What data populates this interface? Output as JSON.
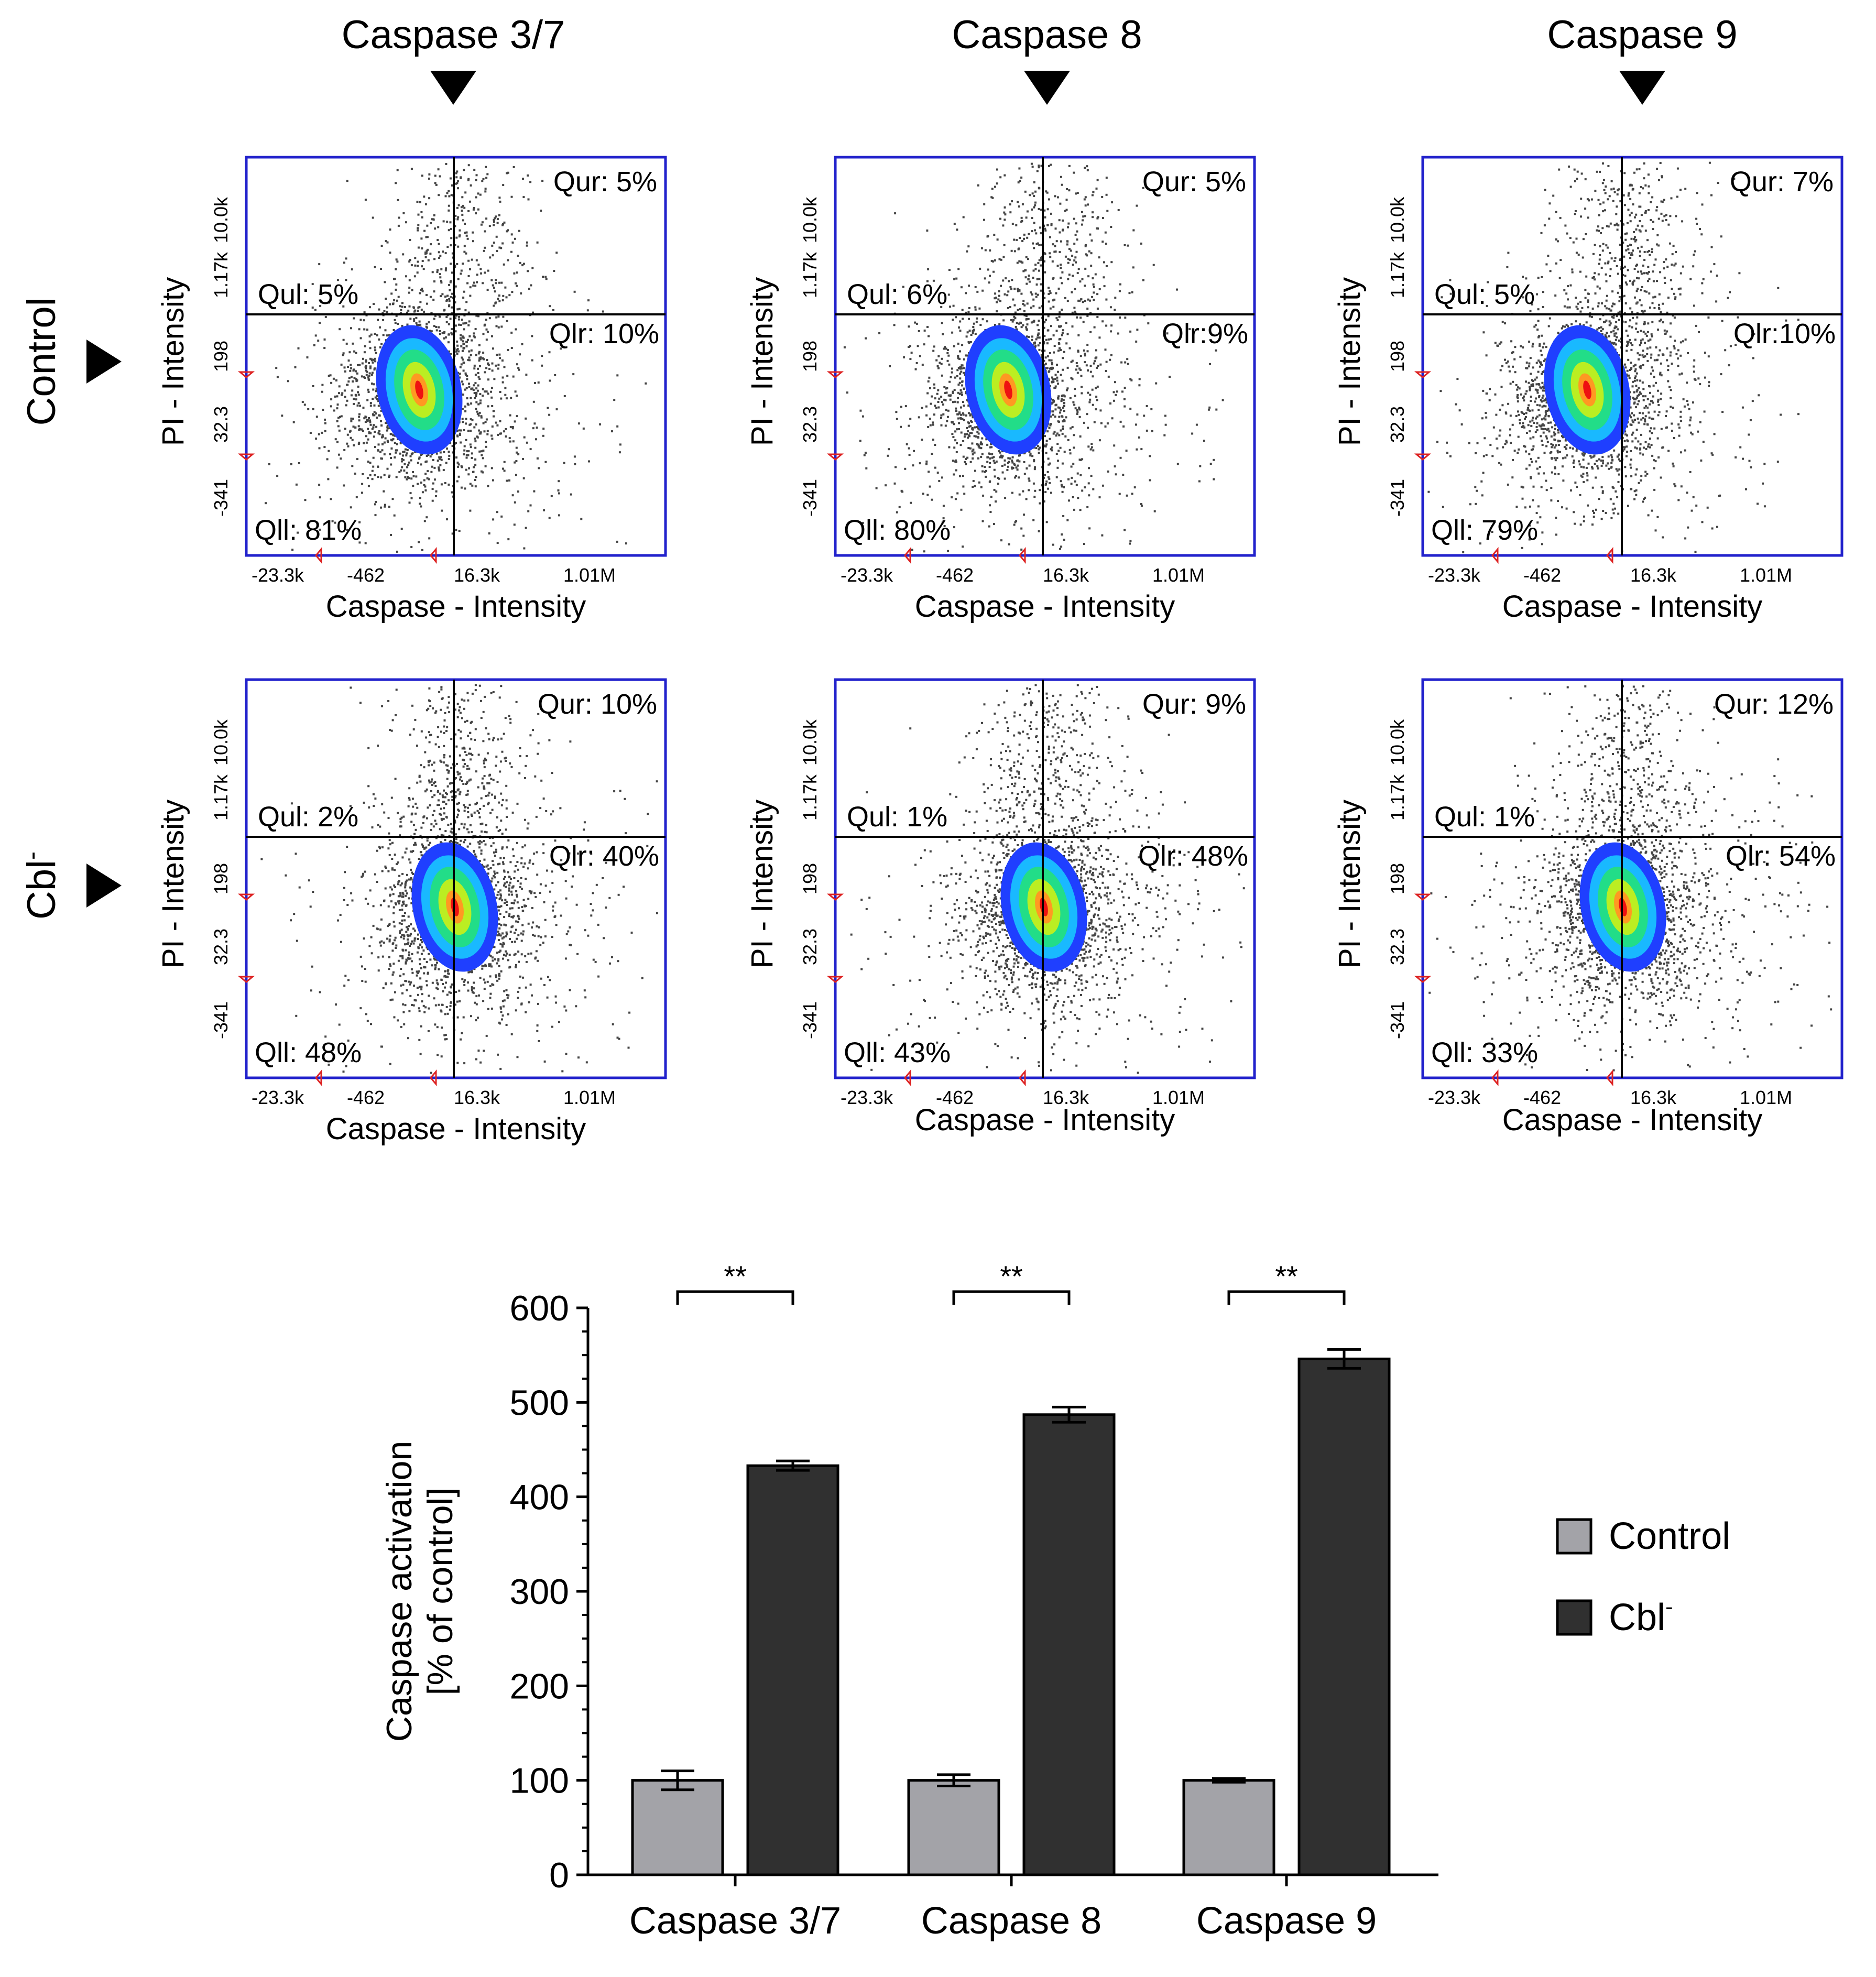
{
  "flow_panels": {
    "column_headers": [
      "Caspase 3/7",
      "Caspase 8",
      "Caspase 9"
    ],
    "row_labels": [
      "Control",
      "Cbl"
    ],
    "row_label_superscripts": [
      "",
      "-"
    ],
    "x_axis_label": "Caspase - Intensity",
    "y_axis_label": "PI - Intensity",
    "x_ticks": [
      "-23.3k",
      "-462",
      "16.3k",
      "1.01M"
    ],
    "y_ticks": [
      "10.0k",
      "1.17k",
      "198",
      "32.3",
      "-341"
    ],
    "colors": {
      "frame": "#2222cc",
      "gate_marker": "#dd2222",
      "dots": "#444444"
    },
    "density_colors": [
      "#1f3fff",
      "#19b9ff",
      "#22dd88",
      "#bbee22",
      "#ff9922",
      "#ee1111"
    ],
    "plots": [
      {
        "row": 0,
        "col": 0,
        "qul": "Qul: 5%",
        "qur": "Qur: 5%",
        "qlr": "Qlr: 10%",
        "qll": "Qll: 81%"
      },
      {
        "row": 0,
        "col": 1,
        "qul": "Qul: 6%",
        "qur": "Qur: 5%",
        "qlr": "Qlr:9%",
        "qll": "Qll: 80%"
      },
      {
        "row": 0,
        "col": 2,
        "qul": "Qul: 5%",
        "qur": "Qur: 7%",
        "qlr": "Qlr:10%",
        "qll": "Qll: 79%"
      },
      {
        "row": 1,
        "col": 0,
        "qul": "Qul: 2%",
        "qur": "Qur: 10%",
        "qlr": "Qlr: 40%",
        "qll": "Qll: 48%"
      },
      {
        "row": 1,
        "col": 1,
        "qul": "Qul: 1%",
        "qur": "Qur: 9%",
        "qlr": "Qlr: 48%",
        "qll": "Qll: 43%"
      },
      {
        "row": 1,
        "col": 2,
        "qul": "Qul: 1%",
        "qur": "Qur: 12%",
        "qlr": "Qlr: 54%",
        "qll": "Qll: 33%"
      }
    ]
  },
  "chart_data": {
    "type": "bar",
    "title": "",
    "xlabel": "",
    "ylabel_lines": [
      "Caspase activation",
      "[% of control]"
    ],
    "ylim": [
      0,
      600
    ],
    "yticks": [
      0,
      100,
      200,
      300,
      400,
      500,
      600
    ],
    "categories": [
      "Caspase 3/7",
      "Caspase 8",
      "Caspase 9"
    ],
    "series": [
      {
        "name": "Control",
        "superscript": "",
        "color": "#a3a3a8",
        "values": [
          100,
          100,
          100
        ],
        "errors": [
          10,
          6,
          2
        ]
      },
      {
        "name": "Cbl",
        "superscript": "-",
        "color": "#303030",
        "values": [
          433,
          487,
          546
        ],
        "errors": [
          5,
          8,
          10
        ]
      }
    ],
    "significance": [
      "**",
      "**",
      "**"
    ],
    "legend_position": "right"
  }
}
